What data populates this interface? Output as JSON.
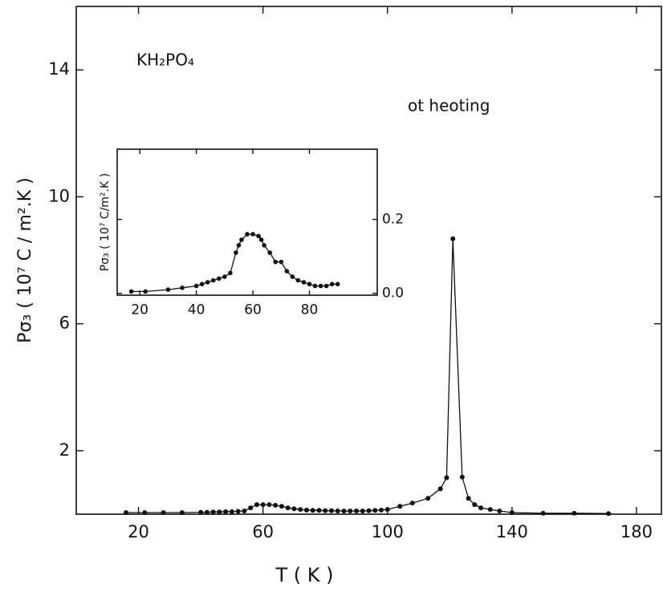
{
  "chart_data": [
    {
      "type": "line",
      "x_label": "T ( K )",
      "y_label": "Pσ₃ ( 10⁷ C / m².K )",
      "annotations": [
        "KH₂PO₄",
        "ot heoting"
      ],
      "color": "#111111",
      "x": [
        16,
        22,
        28,
        34,
        40,
        42,
        44,
        46,
        48,
        50,
        52,
        54,
        56,
        58,
        60,
        62,
        64,
        66,
        68,
        70,
        72,
        74,
        76,
        78,
        80,
        82,
        84,
        86,
        88,
        90,
        92,
        94,
        96,
        98,
        100,
        104,
        108,
        113,
        117,
        119,
        121,
        124,
        126,
        128,
        130,
        133,
        136,
        140,
        150,
        160,
        171
      ],
      "values": [
        0.05,
        0.05,
        0.05,
        0.05,
        0.06,
        0.06,
        0.07,
        0.07,
        0.08,
        0.08,
        0.09,
        0.1,
        0.2,
        0.3,
        0.3,
        0.3,
        0.28,
        0.25,
        0.2,
        0.17,
        0.15,
        0.13,
        0.12,
        0.12,
        0.11,
        0.11,
        0.1,
        0.1,
        0.1,
        0.1,
        0.1,
        0.11,
        0.12,
        0.13,
        0.15,
        0.25,
        0.35,
        0.5,
        0.8,
        1.15,
        8.68,
        1.17,
        0.5,
        0.3,
        0.2,
        0.15,
        0.1,
        0.05,
        0.03,
        0.03,
        0.02
      ],
      "xlim": [
        0,
        188
      ],
      "ylim": [
        0,
        16
      ],
      "xticks": [
        20,
        60,
        100,
        140,
        180
      ],
      "yticks": [
        2,
        6,
        10,
        14
      ],
      "y_axis_position": "left"
    },
    {
      "type": "line",
      "y_label": "Pσ₃ ( 10⁷ C/m².K )",
      "color": "#111111",
      "x": [
        17,
        22,
        30,
        35,
        40,
        42,
        44,
        46,
        48,
        50,
        52,
        54,
        55,
        56,
        58,
        60,
        62,
        63,
        64,
        66,
        68,
        70,
        72,
        74,
        76,
        78,
        80,
        82,
        84,
        86,
        88,
        90
      ],
      "values": [
        0.005,
        0.005,
        0.01,
        0.015,
        0.02,
        0.025,
        0.03,
        0.035,
        0.04,
        0.045,
        0.055,
        0.11,
        0.13,
        0.145,
        0.16,
        0.16,
        0.155,
        0.145,
        0.13,
        0.11,
        0.085,
        0.085,
        0.06,
        0.045,
        0.035,
        0.03,
        0.025,
        0.02,
        0.02,
        0.02,
        0.025,
        0.025
      ],
      "xlim": [
        12,
        104
      ],
      "ylim": [
        -0.005,
        0.39
      ],
      "xticks": [
        20,
        40,
        60,
        80
      ],
      "yticks": [
        {
          "value": 0,
          "label": "0.0"
        },
        0.2
      ],
      "y_axis_position": "right"
    }
  ]
}
